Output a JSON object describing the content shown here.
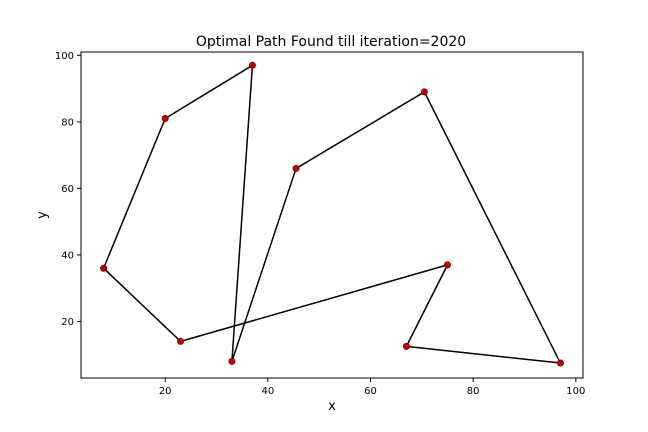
{
  "chart_data": {
    "type": "line",
    "title": "Optimal Path Found till iteration=2020",
    "xlabel": "x",
    "ylabel": "y",
    "xlim": [
      3.6,
      101.4
    ],
    "ylim": [
      3.0,
      101.0
    ],
    "xticks": [
      20,
      40,
      60,
      80,
      100
    ],
    "yticks": [
      20,
      40,
      60,
      80,
      100
    ],
    "grid": false,
    "path": {
      "x": [
        45.5,
        33.0,
        37.0,
        20.0,
        8.0,
        23.0,
        75.0,
        67.0,
        97.0,
        70.5,
        45.5
      ],
      "y": [
        66.0,
        8.0,
        97.0,
        81.0,
        36.0,
        14.0,
        37.0,
        12.5,
        7.5,
        89.0,
        66.0
      ]
    },
    "line_color": "#000000",
    "marker_fill": "#cc0000",
    "marker_edge": "#800000"
  }
}
